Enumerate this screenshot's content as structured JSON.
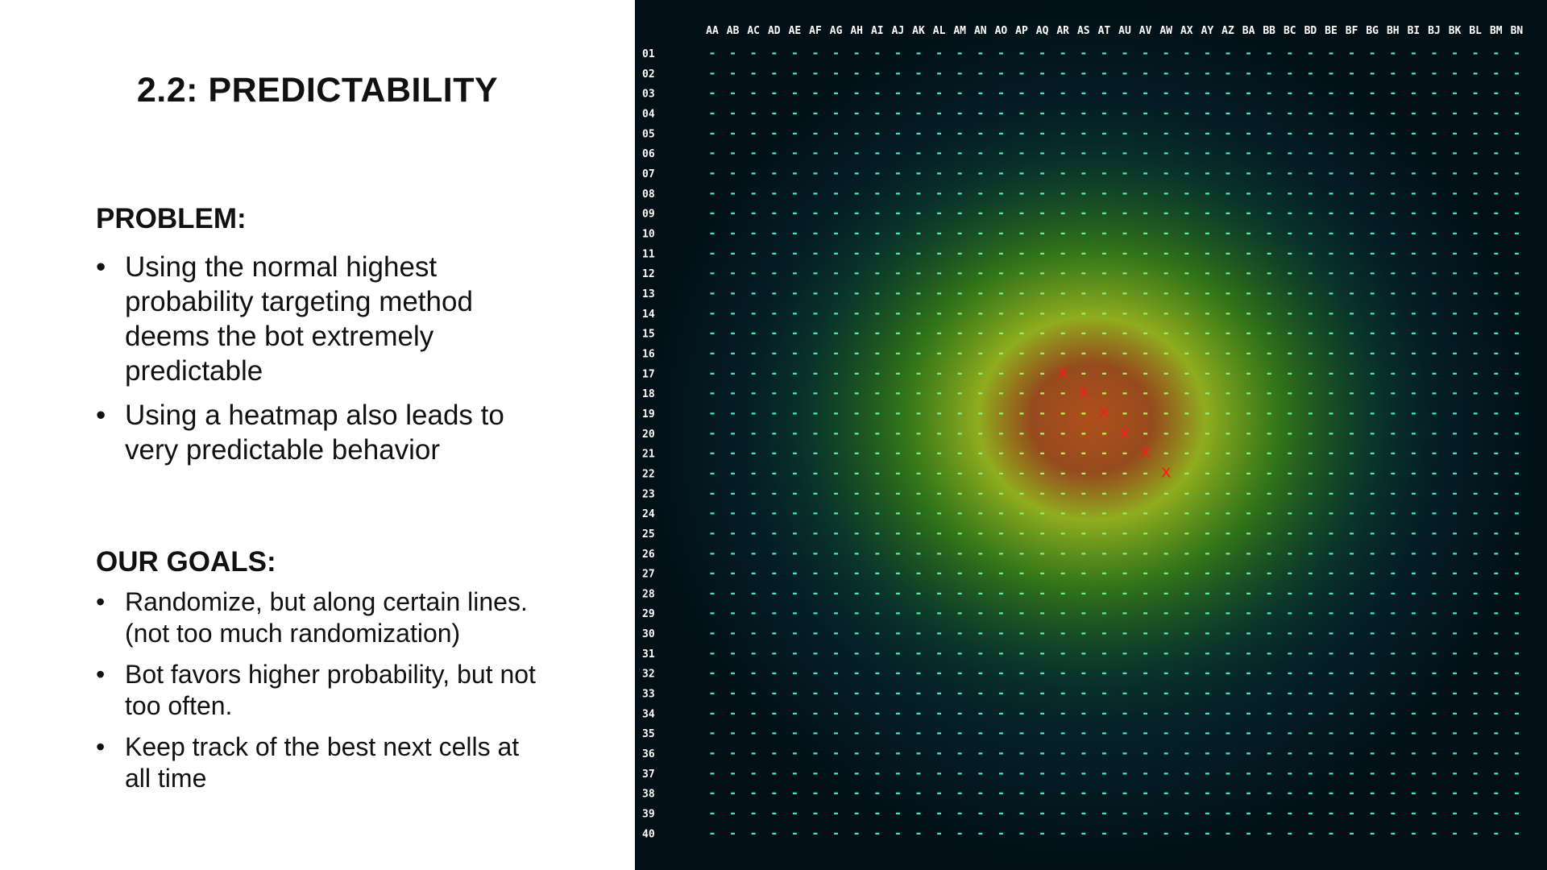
{
  "slide": {
    "title": "2.2: PREDICTABILITY",
    "problem": {
      "heading": "PROBLEM:",
      "bullets": [
        "Using the normal highest probability targeting method deems the bot extremely predictable",
        "Using a heatmap also leads to very predictable behavior"
      ]
    },
    "goals": {
      "heading": "OUR GOALS:",
      "bullets": [
        "Randomize, but along certain lines. (not too much randomization)",
        "Bot favors higher probability, but not too often.",
        "Keep track of the best next cells at all time"
      ]
    },
    "bullet_glyph": "•"
  },
  "board": {
    "columns": [
      "AA",
      "AB",
      "AC",
      "AD",
      "AE",
      "AF",
      "AG",
      "AH",
      "AI",
      "AJ",
      "AK",
      "AL",
      "AM",
      "AN",
      "AO",
      "AP",
      "AQ",
      "AR",
      "AS",
      "AT",
      "AU",
      "AV",
      "AW",
      "AX",
      "AY",
      "AZ",
      "BA",
      "BB",
      "BC",
      "BD",
      "BE",
      "BF",
      "BG",
      "BH",
      "BI",
      "BJ",
      "BK",
      "BL",
      "BM",
      "BN"
    ],
    "rows": [
      "01",
      "02",
      "03",
      "04",
      "05",
      "06",
      "07",
      "08",
      "09",
      "10",
      "11",
      "12",
      "13",
      "14",
      "15",
      "16",
      "17",
      "18",
      "19",
      "20",
      "21",
      "22",
      "23",
      "24",
      "25",
      "26",
      "27",
      "28",
      "29",
      "30",
      "31",
      "32",
      "33",
      "34",
      "35",
      "36",
      "37",
      "38",
      "39",
      "40"
    ],
    "empty_cell_glyph": "-",
    "hit_glyph": "x",
    "hits": [
      {
        "col": "AR",
        "row": "17"
      },
      {
        "col": "AS",
        "row": "18"
      },
      {
        "col": "AT",
        "row": "19"
      },
      {
        "col": "AU",
        "row": "20"
      },
      {
        "col": "AV",
        "row": "21"
      },
      {
        "col": "AW",
        "row": "22"
      }
    ],
    "heat_center": {
      "col": "AS",
      "row": "20"
    },
    "colors": {
      "background": "#02141c",
      "cell_cool": "#3fe6c0",
      "cell_warm": "#c8f048",
      "heat_outer": "#3f8c12",
      "heat_mid": "#a8c21c",
      "heat_core": "#b8501a",
      "hit": "#ff1a1a",
      "label": "#ffffff"
    }
  }
}
